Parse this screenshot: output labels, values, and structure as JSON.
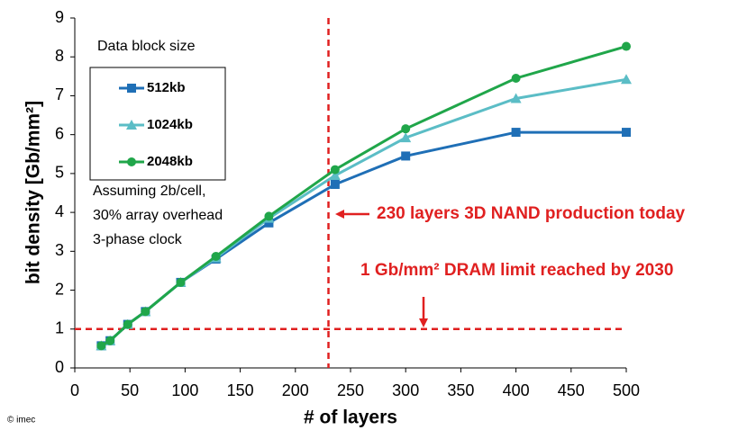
{
  "chart_data": {
    "type": "line",
    "xlabel": "# of layers",
    "ylabel": "bit density [Gb/mm²]",
    "x": [
      24,
      32,
      48,
      64,
      96,
      128,
      176,
      236,
      300,
      400,
      500
    ],
    "series": [
      {
        "name": "512kb",
        "color": "#1f6fb6",
        "marker": "square",
        "values": [
          0.57,
          0.7,
          1.12,
          1.45,
          2.2,
          2.8,
          3.73,
          4.72,
          5.45,
          6.06,
          6.06
        ]
      },
      {
        "name": "1024kb",
        "color": "#5bbdc6",
        "marker": "triangle",
        "values": [
          0.57,
          0.7,
          1.12,
          1.45,
          2.2,
          2.83,
          3.85,
          4.95,
          5.92,
          6.93,
          7.42
        ]
      },
      {
        "name": "2048kb",
        "color": "#20a64a",
        "marker": "circle",
        "values": [
          0.57,
          0.7,
          1.12,
          1.45,
          2.2,
          2.87,
          3.9,
          5.1,
          6.15,
          7.45,
          8.27
        ]
      }
    ],
    "xlim": [
      0,
      500
    ],
    "xticks": [
      0,
      50,
      100,
      150,
      200,
      250,
      300,
      350,
      400,
      450,
      500
    ],
    "ylim": [
      0,
      9
    ],
    "yticks": [
      0,
      1,
      2,
      3,
      4,
      5,
      6,
      7,
      8,
      9
    ],
    "legend_title": "Data block size",
    "note": [
      "Assuming 2b/cell,",
      "30% array overhead",
      "3-phase clock"
    ],
    "reference_lines": {
      "x": 230,
      "y": 1,
      "color": "#e02020"
    },
    "annotations": [
      "230 layers 3D NAND production today",
      "1 Gb/mm² DRAM limit reached by 2030"
    ],
    "copyright": "© imec"
  }
}
